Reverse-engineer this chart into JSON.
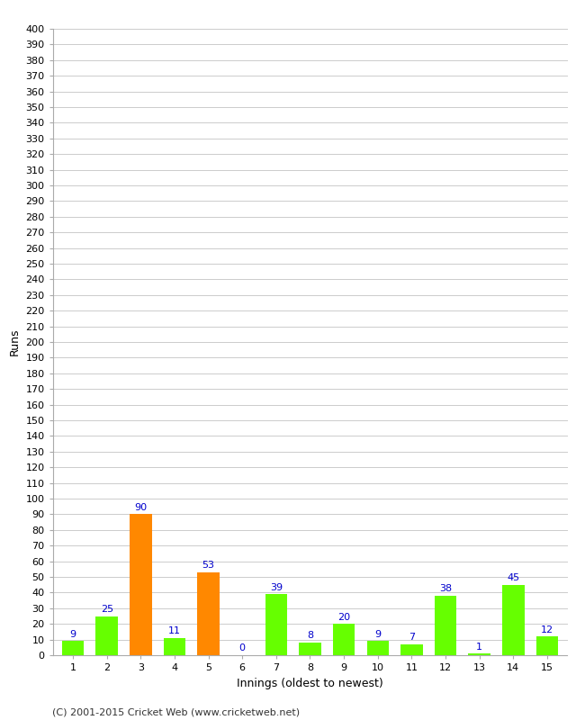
{
  "xlabel": "Innings (oldest to newest)",
  "ylabel": "Runs",
  "categories": [
    1,
    2,
    3,
    4,
    5,
    6,
    7,
    8,
    9,
    10,
    11,
    12,
    13,
    14,
    15
  ],
  "values": [
    9,
    25,
    90,
    11,
    53,
    0,
    39,
    8,
    20,
    9,
    7,
    38,
    1,
    45,
    12
  ],
  "bar_colors": [
    "#66ff00",
    "#66ff00",
    "#ff8800",
    "#66ff00",
    "#ff8800",
    "#66ff00",
    "#66ff00",
    "#66ff00",
    "#66ff00",
    "#66ff00",
    "#66ff00",
    "#66ff00",
    "#66ff00",
    "#66ff00",
    "#66ff00"
  ],
  "label_color": "#0000cc",
  "ylim": [
    0,
    400
  ],
  "yticks": [
    0,
    10,
    20,
    30,
    40,
    50,
    60,
    70,
    80,
    90,
    100,
    110,
    120,
    130,
    140,
    150,
    160,
    170,
    180,
    190,
    200,
    210,
    220,
    230,
    240,
    250,
    260,
    270,
    280,
    290,
    300,
    310,
    320,
    330,
    340,
    350,
    360,
    370,
    380,
    390,
    400
  ],
  "grid_color": "#cccccc",
  "background_color": "#ffffff",
  "footer": "(C) 2001-2015 Cricket Web (www.cricketweb.net)",
  "label_fontsize": 9,
  "tick_fontsize": 8,
  "footer_fontsize": 8,
  "bar_label_fontsize": 8
}
